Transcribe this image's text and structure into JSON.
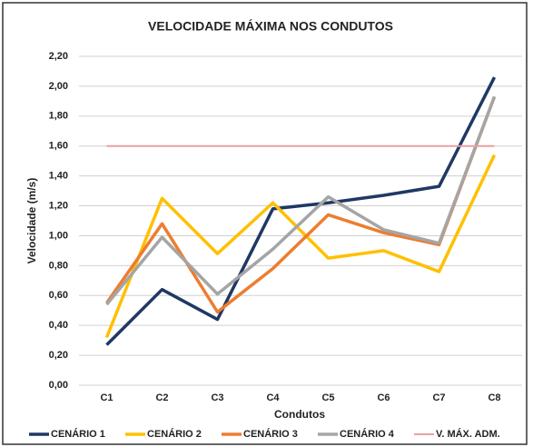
{
  "chart_data": {
    "type": "line",
    "title": "VELOCIDADE MÁXIMA NOS CONDUTOS",
    "xlabel": "Condutos",
    "ylabel": "Velocidade (m/s)",
    "categories": [
      "C1",
      "C2",
      "C3",
      "C4",
      "C5",
      "C6",
      "C7",
      "C8"
    ],
    "series": [
      {
        "name": "CENÁRIO 1",
        "color": "#203864",
        "values": [
          0.27,
          0.64,
          0.44,
          1.18,
          1.22,
          1.27,
          1.33,
          2.06
        ]
      },
      {
        "name": "CENÁRIO 2",
        "color": "#ffc000",
        "values": [
          0.32,
          1.25,
          0.88,
          1.22,
          0.85,
          0.9,
          0.76,
          1.54
        ]
      },
      {
        "name": "CENÁRIO 3",
        "color": "#ed7d31",
        "values": [
          0.55,
          1.08,
          0.49,
          0.78,
          1.14,
          1.02,
          0.94,
          1.93
        ]
      },
      {
        "name": "CENÁRIO 4",
        "color": "#a5a5a5",
        "values": [
          0.54,
          0.99,
          0.61,
          0.91,
          1.26,
          1.04,
          0.95,
          1.93
        ]
      },
      {
        "name": "V. MÁX. ADM.",
        "color": "#e8a0a0",
        "values": [
          1.6,
          1.6,
          1.6,
          1.6,
          1.6,
          1.6,
          1.6,
          1.6
        ]
      }
    ],
    "ylim": [
      0,
      2.2
    ],
    "yticks": [
      {
        "value": 0,
        "label": "0,00"
      },
      {
        "value": 0.2,
        "label": "0,20"
      },
      {
        "value": 0.4,
        "label": "0,40"
      },
      {
        "value": 0.6,
        "label": "0,60"
      },
      {
        "value": 0.8,
        "label": "0,80"
      },
      {
        "value": 1.0,
        "label": "1,00"
      },
      {
        "value": 1.2,
        "label": "1,20"
      },
      {
        "value": 1.4,
        "label": "1,40"
      },
      {
        "value": 1.6,
        "label": "1,60"
      },
      {
        "value": 1.8,
        "label": "1,80"
      },
      {
        "value": 2.0,
        "label": "2,00"
      },
      {
        "value": 2.2,
        "label": "2,20"
      }
    ],
    "grid": true,
    "legend": "bottom"
  }
}
